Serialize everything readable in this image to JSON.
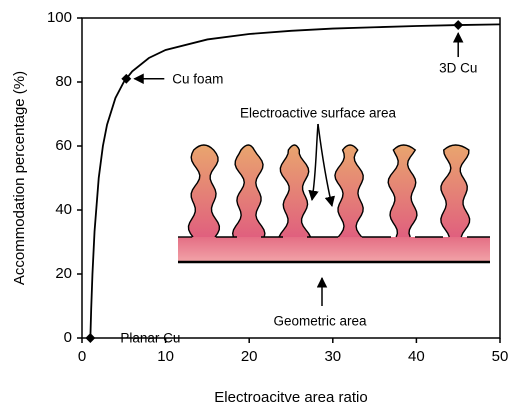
{
  "chart_data": {
    "type": "line",
    "x_label": "Electroacitve area ratio",
    "y_label": "Accommodation percentage (%)",
    "xlim": [
      0,
      50
    ],
    "xticks": [
      0,
      10,
      20,
      30,
      40,
      50
    ],
    "ylim": [
      0,
      100
    ],
    "yticks": [
      0,
      20,
      40,
      60,
      80,
      100
    ],
    "color": "#000000",
    "curve": {
      "x": [
        1,
        1.1,
        1.25,
        1.5,
        2,
        2.5,
        3,
        4,
        5,
        6,
        8,
        10,
        15,
        20,
        25,
        30,
        35,
        40,
        45,
        50
      ],
      "values": [
        0,
        9.1,
        20,
        33.3,
        50,
        60,
        66.7,
        75,
        80,
        83.3,
        87.5,
        90,
        93.3,
        95,
        96,
        96.7,
        97.1,
        97.5,
        97.8,
        98
      ]
    },
    "points": {
      "x": [
        1,
        5.3,
        45
      ],
      "values": [
        0,
        81,
        97.8
      ],
      "labels": [
        "Planar Cu",
        "Cu foam",
        "3D Cu"
      ]
    },
    "annotations": [
      "Electroactive surface area",
      "Geometric area"
    ]
  }
}
